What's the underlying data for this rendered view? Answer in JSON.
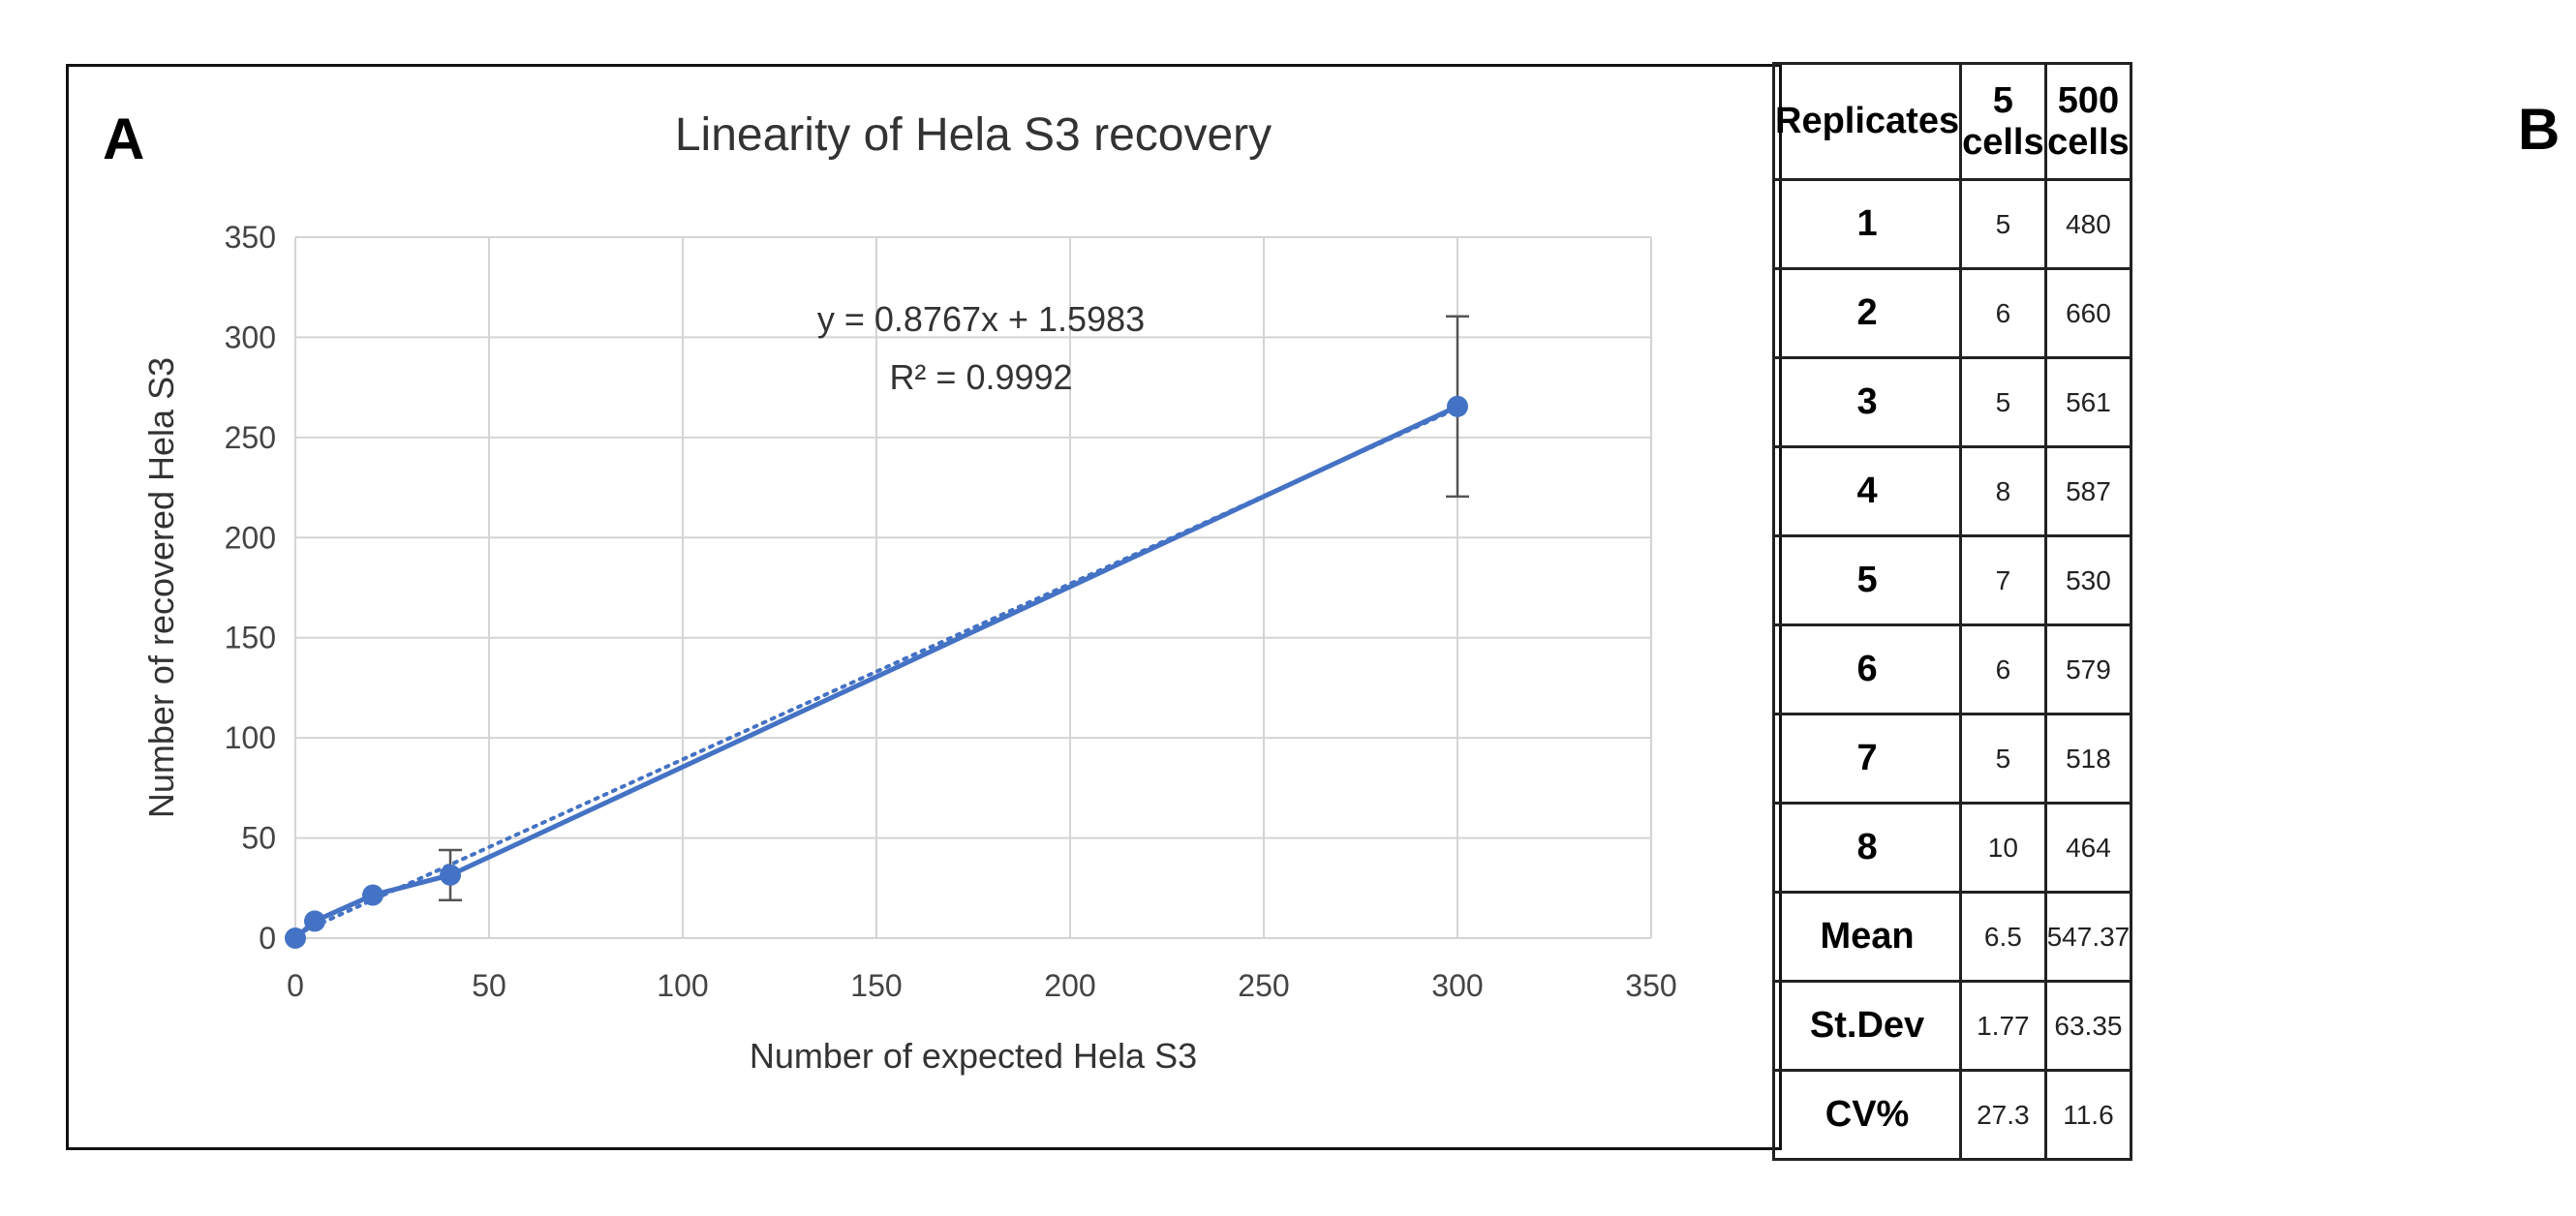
{
  "panel_labels": {
    "a": "A",
    "b": "B"
  },
  "chart_data": {
    "type": "scatter",
    "title": "Linearity of Hela S3 recovery",
    "xlabel": "Number of expected Hela S3",
    "ylabel": "Number of recovered  Hela S3",
    "xlim": [
      0,
      350
    ],
    "ylim": [
      0,
      350
    ],
    "xticks": [
      0,
      50,
      100,
      150,
      200,
      250,
      300,
      350
    ],
    "yticks": [
      0,
      50,
      100,
      150,
      200,
      250,
      300,
      350
    ],
    "grid": true,
    "series": [
      {
        "name": "Hela S3 recovery",
        "color": "#4472C4",
        "x": [
          0,
          5,
          20,
          40,
          300
        ],
        "y": [
          0,
          8.5,
          21.5,
          31.5,
          265.5
        ],
        "error": [
          0,
          0,
          0,
          12.5,
          45
        ]
      }
    ],
    "trendline": {
      "type": "linear",
      "style": "dotted",
      "slope": 0.8767,
      "intercept": 1.5983,
      "x_range": [
        0,
        300
      ]
    },
    "annotation": {
      "equation": "y = 0.8767x + 1.5983",
      "r_squared": "R² = 0.9992"
    }
  },
  "table": {
    "headers": [
      "Replicates",
      "5 cells",
      "500 cells"
    ],
    "rows": [
      [
        "1",
        "5",
        "480"
      ],
      [
        "2",
        "6",
        "660"
      ],
      [
        "3",
        "5",
        "561"
      ],
      [
        "4",
        "8",
        "587"
      ],
      [
        "5",
        "7",
        "530"
      ],
      [
        "6",
        "6",
        "579"
      ],
      [
        "7",
        "5",
        "518"
      ],
      [
        "8",
        "10",
        "464"
      ],
      [
        "Mean",
        "6.5",
        "547.37"
      ],
      [
        "St.Dev",
        "1.77",
        "63.35"
      ],
      [
        "CV%",
        "27.3",
        "11.6"
      ]
    ]
  }
}
